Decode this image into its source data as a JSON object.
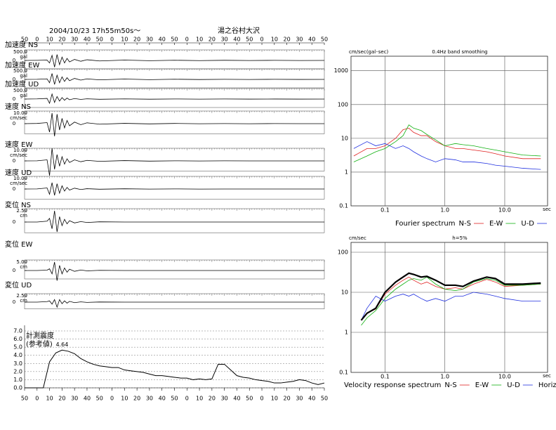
{
  "chart_data": [
    {
      "type": "seismogram",
      "title": "2004/10/23 17h55m50s～",
      "subtitle": "湯之谷村大沢",
      "xlim": [
        0,
        240
      ],
      "xticks": [
        {
          "value": 0,
          "label": "50"
        },
        {
          "value": 10,
          "label": "0"
        },
        {
          "value": 20,
          "label": "10"
        },
        {
          "value": 30,
          "label": "20"
        },
        {
          "value": 40,
          "label": "30"
        },
        {
          "value": 50,
          "label": "40"
        },
        {
          "value": 60,
          "label": "50"
        },
        {
          "value": 70,
          "label": "0"
        },
        {
          "value": 80,
          "label": "10"
        },
        {
          "value": 90,
          "label": "20"
        },
        {
          "value": 100,
          "label": "30"
        },
        {
          "value": 110,
          "label": "40"
        },
        {
          "value": 120,
          "label": "50"
        },
        {
          "value": 130,
          "label": "0"
        },
        {
          "value": 140,
          "label": "10"
        },
        {
          "value": 150,
          "label": "20"
        },
        {
          "value": 160,
          "label": "30"
        },
        {
          "value": 170,
          "label": "40"
        },
        {
          "value": 180,
          "label": "50"
        },
        {
          "value": 190,
          "label": "0"
        },
        {
          "value": 200,
          "label": "10"
        },
        {
          "value": 210,
          "label": "20"
        },
        {
          "value": 220,
          "label": "30"
        },
        {
          "value": 230,
          "label": "40"
        },
        {
          "value": 240,
          "label": "50"
        }
      ],
      "x": [
        0,
        10,
        18,
        20,
        22,
        24,
        26,
        28,
        30,
        32,
        34,
        36,
        40,
        45,
        50,
        60,
        80,
        100,
        120,
        140,
        160,
        180,
        200,
        220,
        240
      ],
      "series": [
        {
          "name": "加速度 NS",
          "unit": "gal",
          "color": "#000000",
          "ylim": [
            -1000,
            1000
          ],
          "yticks": [
            {
              "value": 500,
              "label": "500.0"
            },
            0
          ],
          "values": [
            0,
            5,
            20,
            -150,
            300,
            -400,
            350,
            -250,
            200,
            -150,
            120,
            -90,
            60,
            -50,
            40,
            -30,
            20,
            -15,
            10,
            -10,
            8,
            -6,
            5,
            -5,
            0
          ]
        },
        {
          "name": "加速度 EW",
          "unit": "gal",
          "color": "#000000",
          "ylim": [
            -1000,
            1000
          ],
          "yticks": [
            {
              "value": 500,
              "label": "500.0"
            },
            0
          ],
          "values": [
            0,
            5,
            30,
            -200,
            350,
            -300,
            250,
            -200,
            150,
            -120,
            100,
            -80,
            60,
            -40,
            30,
            -25,
            20,
            -15,
            10,
            -8,
            6,
            -5,
            4,
            -3,
            0
          ]
        },
        {
          "name": "加速度 UD",
          "unit": "gal",
          "color": "#000000",
          "ylim": [
            -1000,
            1000
          ],
          "yticks": [
            {
              "value": 500,
              "label": "500.0"
            },
            0
          ],
          "values": [
            0,
            10,
            40,
            -250,
            300,
            -200,
            150,
            -120,
            90,
            -70,
            60,
            -40,
            30,
            -20,
            15,
            -12,
            10,
            -8,
            6,
            -5,
            4,
            -3,
            2,
            -2,
            0
          ]
        },
        {
          "name": "速度 NS",
          "unit": "cm/sec",
          "color": "#000000",
          "ylim": [
            -20,
            20
          ],
          "yticks": [
            {
              "value": 10,
              "label": "10.00"
            },
            0
          ],
          "values": [
            0,
            0.2,
            1,
            -8,
            10,
            -12,
            9,
            -6,
            5,
            -4,
            3,
            -2,
            1.5,
            -1,
            0.8,
            -0.5,
            0.3,
            -0.2,
            0.2,
            -0.1,
            0.1,
            -0.1,
            0.1,
            0,
            0
          ]
        },
        {
          "name": "速度 EW",
          "unit": "cm/sec",
          "color": "#000000",
          "ylim": [
            -20,
            20
          ],
          "yticks": [
            {
              "value": 10,
              "label": "10.00"
            },
            0
          ],
          "values": [
            0,
            0.1,
            1,
            -14,
            12,
            -8,
            6,
            -5,
            4,
            -3,
            2,
            -1.5,
            1,
            -0.8,
            0.5,
            -0.4,
            0.3,
            -0.2,
            0.1,
            -0.1,
            0.1,
            0,
            0,
            0,
            0
          ]
        },
        {
          "name": "速度 UD",
          "unit": "cm/sec",
          "color": "#000000",
          "ylim": [
            -20,
            20
          ],
          "yticks": [
            {
              "value": 10,
              "label": "10.00"
            },
            0
          ],
          "values": [
            0,
            0.1,
            1,
            -5,
            6,
            -6,
            5,
            -4,
            3,
            -2,
            1.5,
            -1,
            0.8,
            -0.5,
            0.3,
            -0.2,
            0.2,
            -0.1,
            0.1,
            -0.1,
            0,
            0,
            0,
            0,
            0
          ]
        },
        {
          "name": "変位 NS",
          "unit": "cm",
          "color": "#000000",
          "ylim": [
            -5,
            5
          ],
          "yticks": [
            {
              "value": 2.5,
              "label": "2.50"
            },
            0
          ],
          "values": [
            0,
            0,
            0.2,
            0.8,
            -1.5,
            2.5,
            -2.2,
            1.2,
            -0.8,
            0.6,
            -0.4,
            0.3,
            -0.2,
            0.1,
            -0.1,
            0.05,
            0,
            0,
            0,
            0,
            0,
            0,
            0,
            0,
            0
          ]
        },
        {
          "name": "変位 EW",
          "unit": "cm",
          "color": "#000000",
          "ylim": [
            -10,
            10
          ],
          "yticks": [
            {
              "value": 5,
              "label": "5.00"
            },
            0
          ],
          "values": [
            0,
            0,
            0.2,
            1,
            -2,
            5,
            -6,
            3,
            -2,
            1.5,
            -1,
            0.8,
            -0.5,
            0.3,
            -0.2,
            0.1,
            0,
            0,
            0,
            0,
            0,
            0,
            0,
            0,
            0
          ]
        },
        {
          "name": "変位 UD",
          "unit": "cm",
          "color": "#000000",
          "ylim": [
            -5,
            5
          ],
          "yticks": [
            {
              "value": 2.5,
              "label": "2.50"
            },
            0
          ],
          "values": [
            0,
            0,
            0.2,
            0.5,
            -0.8,
            1,
            -2,
            1,
            -0.6,
            0.5,
            -0.4,
            0.3,
            -0.2,
            0.1,
            -0.1,
            0.05,
            0,
            0,
            0,
            0,
            0,
            0,
            0,
            0,
            0
          ]
        }
      ]
    },
    {
      "type": "line",
      "title": "計測震度",
      "subtitle": "(参考値)",
      "annotation": "4.64",
      "color": "#000000",
      "grid": true,
      "xlim": [
        0,
        240
      ],
      "xticks": [
        {
          "value": 0,
          "label": "50"
        },
        {
          "value": 10,
          "label": "0"
        },
        {
          "value": 20,
          "label": "10"
        },
        {
          "value": 30,
          "label": "20"
        },
        {
          "value": 40,
          "label": "30"
        },
        {
          "value": 50,
          "label": "40"
        },
        {
          "value": 60,
          "label": "50"
        },
        {
          "value": 70,
          "label": "0"
        },
        {
          "value": 80,
          "label": "10"
        },
        {
          "value": 90,
          "label": "20"
        },
        {
          "value": 100,
          "label": "30"
        },
        {
          "value": 110,
          "label": "40"
        },
        {
          "value": 120,
          "label": "50"
        },
        {
          "value": 130,
          "label": "0"
        },
        {
          "value": 140,
          "label": "10"
        },
        {
          "value": 150,
          "label": "20"
        },
        {
          "value": 160,
          "label": "30"
        },
        {
          "value": 170,
          "label": "40"
        },
        {
          "value": 180,
          "label": "50"
        },
        {
          "value": 190,
          "label": "0"
        },
        {
          "value": 200,
          "label": "10"
        },
        {
          "value": 210,
          "label": "20"
        },
        {
          "value": 220,
          "label": "30"
        },
        {
          "value": 230,
          "label": "40"
        },
        {
          "value": 240,
          "label": "50"
        }
      ],
      "ylim": [
        0,
        7
      ],
      "yticks": [
        {
          "value": 0,
          "label": "0.0"
        },
        {
          "value": 1,
          "label": "1.0"
        },
        {
          "value": 2,
          "label": "2.0"
        },
        {
          "value": 3,
          "label": "3.0"
        },
        {
          "value": 4,
          "label": "4.0"
        },
        {
          "value": 5,
          "label": "5.0"
        },
        {
          "value": 6,
          "label": "6.0"
        },
        {
          "value": 7,
          "label": "7.0"
        }
      ],
      "x": [
        0,
        5,
        10,
        15,
        20,
        25,
        30,
        35,
        40,
        45,
        50,
        55,
        60,
        65,
        70,
        75,
        80,
        85,
        90,
        95,
        100,
        105,
        110,
        115,
        120,
        125,
        130,
        135,
        140,
        145,
        150,
        155,
        160,
        165,
        170,
        175,
        180,
        185,
        190,
        195,
        200,
        205,
        210,
        215,
        220,
        225,
        230,
        235,
        240
      ],
      "values": [
        0,
        0,
        0,
        0,
        3.2,
        4.3,
        4.64,
        4.5,
        4.2,
        3.6,
        3.2,
        2.9,
        2.7,
        2.6,
        2.5,
        2.5,
        2.2,
        2.1,
        2.0,
        1.9,
        1.7,
        1.5,
        1.5,
        1.4,
        1.3,
        1.2,
        1.2,
        1.0,
        1.1,
        1.0,
        1.1,
        2.9,
        2.9,
        2.2,
        1.5,
        1.3,
        1.2,
        1.0,
        0.9,
        0.8,
        0.6,
        0.6,
        0.7,
        0.8,
        1.0,
        0.9,
        0.6,
        0.4,
        0.6
      ]
    },
    {
      "type": "line",
      "log_x": true,
      "log_y": true,
      "grid": true,
      "title": "0.4Hz band smoothing",
      "y_label": "cm/sec(gal･sec)",
      "x_label": "sec",
      "legend_title": "Fourier spectrum",
      "xlim": [
        0.027,
        52
      ],
      "xticks": [
        0.1,
        {
          "value": 1,
          "label": "1.0"
        },
        {
          "value": 10,
          "label": "10.0"
        }
      ],
      "ylim": [
        0.1,
        2700
      ],
      "yticks": [
        0.1,
        1,
        10,
        100,
        1000
      ],
      "x": [
        0.03,
        0.05,
        0.07,
        0.1,
        0.15,
        0.2,
        0.25,
        0.3,
        0.4,
        0.5,
        0.7,
        1,
        1.5,
        2,
        3,
        5,
        7,
        10,
        20,
        40
      ],
      "series": [
        {
          "name": "N-S",
          "color": "#e02020",
          "width": 0.8,
          "values": [
            3,
            5,
            5,
            6,
            10,
            18,
            20,
            15,
            12,
            12,
            8,
            6,
            5,
            5,
            4.5,
            4,
            3.5,
            3,
            2.5,
            2.5
          ]
        },
        {
          "name": "E-W",
          "color": "#10b010",
          "width": 0.8,
          "values": [
            2,
            3,
            4,
            5,
            8,
            12,
            25,
            20,
            17,
            13,
            9,
            6,
            7,
            6.5,
            6,
            5,
            4.5,
            4,
            3.2,
            3
          ]
        },
        {
          "name": "U-D",
          "color": "#2030e0",
          "width": 0.8,
          "values": [
            5,
            8,
            6,
            7,
            5,
            6,
            5,
            4,
            3,
            2.5,
            2,
            2.5,
            2.3,
            2,
            2,
            1.8,
            1.6,
            1.5,
            1.3,
            1.2
          ]
        }
      ]
    },
    {
      "type": "line",
      "log_x": true,
      "log_y": true,
      "grid": true,
      "title": "h=5%",
      "y_label": "cm/sec",
      "x_label": "sec",
      "legend_title": "Velocity response spectrum",
      "xlim": [
        0.027,
        52
      ],
      "xticks": [
        0.1,
        {
          "value": 1,
          "label": "1.0"
        },
        {
          "value": 10,
          "label": "10.0"
        }
      ],
      "ylim": [
        0.1,
        176
      ],
      "yticks": [
        0.1,
        1,
        10,
        100
      ],
      "x": [
        0.04,
        0.05,
        0.07,
        0.1,
        0.15,
        0.2,
        0.25,
        0.3,
        0.4,
        0.5,
        0.7,
        1,
        1.5,
        2,
        3,
        5,
        7,
        10,
        20,
        40
      ],
      "series": [
        {
          "name": "N-S",
          "color": "#e02020",
          "width": 0.8,
          "values": [
            2,
            3,
            3.8,
            9,
            15,
            20,
            24,
            20,
            16,
            18,
            14,
            12,
            13,
            12,
            16,
            21,
            18,
            14,
            15,
            16
          ]
        },
        {
          "name": "E-W",
          "color": "#10b010",
          "width": 0.8,
          "values": [
            1.5,
            2.3,
            3.5,
            7,
            12,
            16,
            20,
            22,
            20,
            24,
            16,
            12,
            11,
            12,
            18,
            22,
            20,
            15,
            15,
            16
          ]
        },
        {
          "name": "U-D",
          "color": "#2030e0",
          "width": 0.8,
          "values": [
            2,
            4,
            8,
            6,
            8,
            9,
            8,
            9,
            7,
            6,
            7,
            6,
            8,
            8,
            10,
            9,
            8,
            7,
            6,
            6
          ]
        },
        {
          "name": "Horizon",
          "color": "#000000",
          "width": 2.2,
          "values": [
            2,
            3,
            4,
            10,
            18,
            24,
            30,
            28,
            24,
            25,
            20,
            15,
            15,
            14,
            19,
            24,
            22,
            16,
            16,
            17
          ]
        }
      ]
    }
  ]
}
